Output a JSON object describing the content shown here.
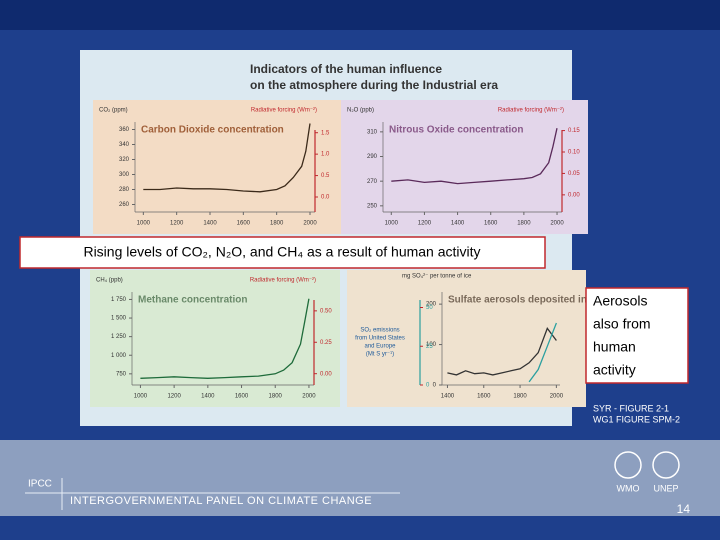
{
  "figure_title": [
    "Indicators of the human influence",
    "on the atmosphere during the Industrial era"
  ],
  "callout_main": "Rising levels of CO₂, N₂O, and CH₄ as a result of human activity",
  "callout_aerosols": [
    "Aerosols",
    "also from",
    "human",
    "activity"
  ],
  "figure_source": [
    "SYR - FIGURE 2-1",
    "WG1 FIGURE SPM-2"
  ],
  "footer": {
    "org_short": "IPCC",
    "org_full": "INTERGOVERNMENTAL PANEL ON CLIMATE CHANGE",
    "logos": [
      "WMO",
      "UNEP"
    ],
    "page_number": "14"
  },
  "chart_data": [
    {
      "type": "line",
      "title": "Carbon Dioxide concentration",
      "ylabel": "CO₂ (ppm)",
      "y2label": "Radiative forcing (Wm⁻²)",
      "x": [
        1000,
        1100,
        1200,
        1300,
        1400,
        1500,
        1600,
        1700,
        1800,
        1850,
        1900,
        1950,
        1975,
        2000
      ],
      "series": [
        {
          "name": "CO₂",
          "color": "#3b2a1a",
          "values": [
            280,
            280,
            282,
            281,
            281,
            280,
            278,
            277,
            280,
            285,
            296,
            311,
            331,
            368
          ]
        }
      ],
      "xlim": [
        950,
        2030
      ],
      "xticks": [
        1000,
        1200,
        1400,
        1600,
        1800,
        2000
      ],
      "ylim": [
        250,
        370
      ],
      "yticks": [
        260,
        280,
        300,
        320,
        340,
        360
      ],
      "y2lim": [
        -0.35,
        1.75
      ],
      "y2ticks": [
        {
          "value": 0.0,
          "label": "0.0"
        },
        0.5,
        {
          "value": 1.0,
          "label": "1.0"
        },
        1.5
      ]
    },
    {
      "type": "line",
      "title": "Nitrous Oxide concentration",
      "ylabel": "N₂O (ppb)",
      "y2label": "Radiative forcing (Wm⁻²)",
      "x": [
        1000,
        1100,
        1200,
        1300,
        1400,
        1500,
        1600,
        1700,
        1800,
        1850,
        1900,
        1950,
        1975,
        2000
      ],
      "series": [
        {
          "name": "N₂O",
          "color": "#5a2a5a",
          "values": [
            270,
            271,
            269,
            270,
            268,
            269,
            270,
            271,
            272,
            273,
            276,
            285,
            298,
            313
          ]
        }
      ],
      "xlim": [
        950,
        2030
      ],
      "xticks": [
        1000,
        1200,
        1400,
        1600,
        1800,
        2000
      ],
      "ylim": [
        245,
        318
      ],
      "yticks": [
        250,
        270,
        290,
        310
      ],
      "y2lim": [
        -0.04,
        0.17
      ],
      "y2ticks": [
        {
          "value": 0.0,
          "label": "0.00"
        },
        0.05,
        {
          "value": 0.1,
          "label": "0.10"
        },
        0.15
      ]
    },
    {
      "type": "line",
      "title": "Methane concentration",
      "ylabel": "CH₄ (ppb)",
      "y2label": "Radiative forcing (Wm⁻²)",
      "x": [
        1000,
        1100,
        1200,
        1300,
        1400,
        1500,
        1600,
        1700,
        1800,
        1850,
        1900,
        1950,
        1975,
        2000
      ],
      "series": [
        {
          "name": "CH₄",
          "color": "#1e6b3a",
          "values": [
            690,
            700,
            710,
            700,
            690,
            700,
            710,
            720,
            750,
            800,
            900,
            1150,
            1450,
            1760
          ]
        }
      ],
      "xlim": [
        950,
        2030
      ],
      "xticks": [
        1000,
        1200,
        1400,
        1600,
        1800,
        2000
      ],
      "ylim": [
        600,
        1850
      ],
      "yticks": [
        750,
        {
          "value": 1000,
          "label": "1 000"
        },
        {
          "value": 1250,
          "label": "1 250"
        },
        {
          "value": 1500,
          "label": "1 500"
        },
        {
          "value": 1750,
          "label": "1 750"
        }
      ],
      "y2lim": [
        -0.09,
        0.65
      ],
      "y2ticks": [
        {
          "value": 0.0,
          "label": "0.00"
        },
        0.25,
        {
          "value": 0.5,
          "label": "0.50"
        }
      ]
    },
    {
      "type": "line",
      "title": "Sulfate aerosols deposited in Greenland ice",
      "ylabel": "mg SO₄²⁻ per tonne of ice",
      "y2label": [
        "SO₂ emissions",
        "from United States",
        "and Europe",
        "(Mt S yr⁻¹)"
      ],
      "x": [
        1400,
        1450,
        1500,
        1550,
        1600,
        1650,
        1700,
        1750,
        1800,
        1850,
        1900,
        1950,
        2000
      ],
      "series": [
        {
          "name": "Sulfate",
          "color": "#333333",
          "values": [
            30,
            25,
            35,
            28,
            30,
            25,
            30,
            35,
            40,
            55,
            80,
            140,
            110
          ]
        },
        {
          "name": "SO₂",
          "color": "#2ba0a0",
          "axis": "y2",
          "values": [
            null,
            null,
            null,
            null,
            null,
            null,
            null,
            null,
            null,
            2,
            10,
            25,
            40
          ]
        }
      ],
      "xlim": [
        1370,
        2020
      ],
      "xticks": [
        1400,
        1600,
        1800,
        2000
      ],
      "ylim": [
        0,
        230
      ],
      "yticks": [
        0,
        100,
        200
      ],
      "y2lim": [
        0,
        60
      ],
      "y2ticks": [
        0,
        25,
        50
      ]
    }
  ]
}
